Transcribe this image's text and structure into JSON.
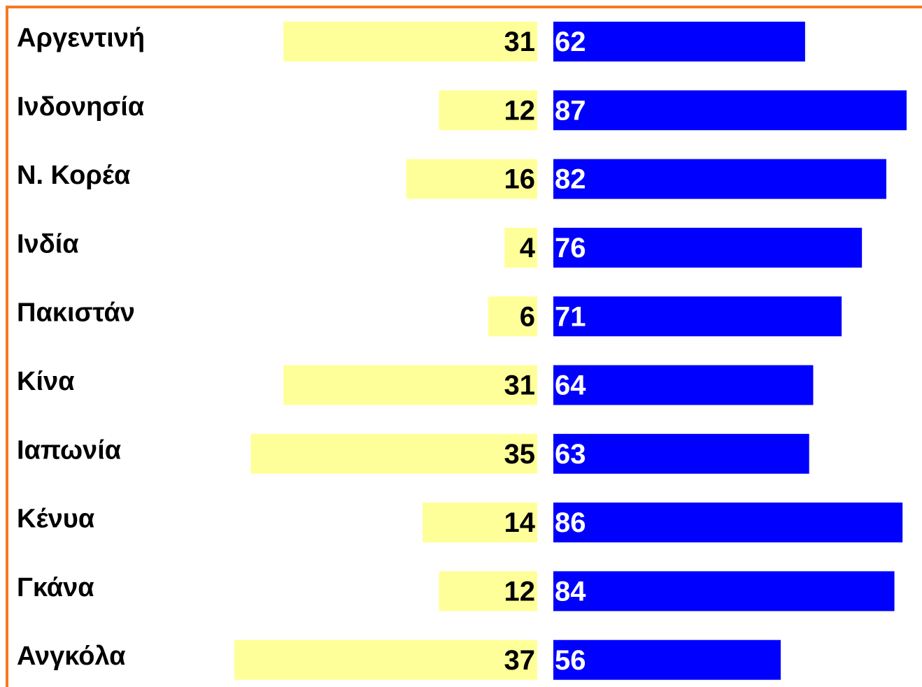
{
  "chart_data": {
    "type": "diverging_bar",
    "categories": [
      "Αργεντινή",
      "Ινδονησία",
      "Ν. Κορέα",
      "Ινδία",
      "Πακιστάν",
      "Κίνα",
      "Ιαπωνία",
      "Κένυα",
      "Γκάνα",
      "Ανγκόλα"
    ],
    "series": [
      {
        "color": "#ffff99",
        "values": [
          31,
          12,
          16,
          4,
          6,
          31,
          35,
          14,
          12,
          37
        ]
      },
      {
        "color": "#0000ff",
        "values": [
          62,
          87,
          82,
          76,
          71,
          64,
          63,
          86,
          84,
          56
        ]
      }
    ]
  }
}
